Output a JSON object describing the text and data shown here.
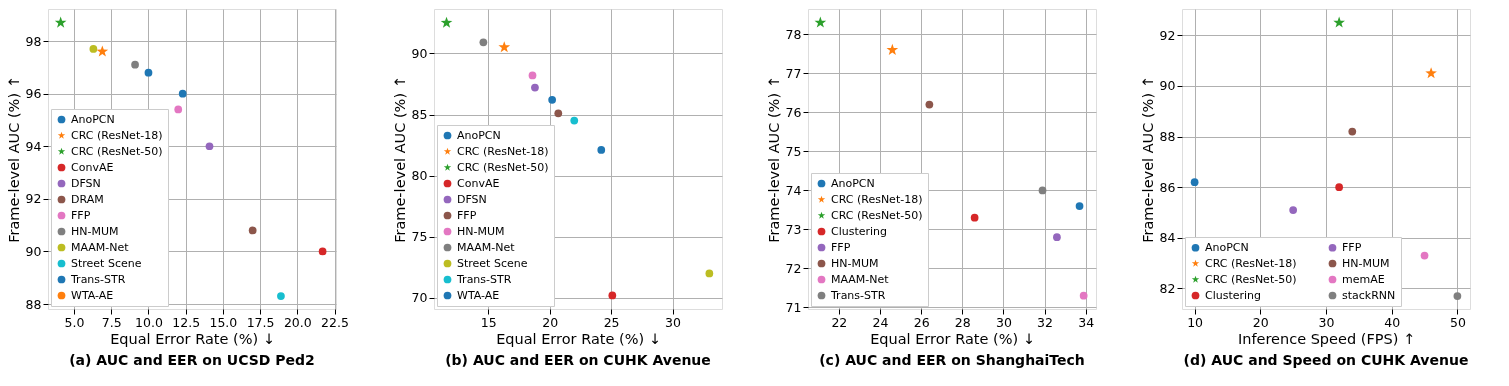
{
  "chart_data": [
    {
      "type": "scatter",
      "title": "(a) AUC and EER on UCSD Ped2",
      "xlabel": "Equal Error Rate (%) ↓",
      "ylabel": "Frame-level AUC (%) ↑",
      "xlim": [
        3.25,
        22.6
      ],
      "ylim": [
        87.81,
        99.22
      ],
      "xticks": [
        {
          "value": 5,
          "label": "5.0"
        },
        7.5,
        {
          "value": 10,
          "label": "10.0"
        },
        12.5,
        {
          "value": 15,
          "label": "15.0"
        },
        17.5,
        {
          "value": 20,
          "label": "20.0"
        },
        22.5
      ],
      "yticks": [
        88,
        90,
        92,
        94,
        96,
        98
      ],
      "grid": true,
      "legend": "bottom left",
      "series": [
        {
          "name": "AnoPCN",
          "color": "#1f77b4",
          "marker": "circle",
          "x": [
            10.0
          ],
          "values": [
            96.8
          ]
        },
        {
          "name": "CRC (ResNet-18)",
          "color": "#ff7f0e",
          "marker": "star",
          "x": [
            6.9
          ],
          "values": [
            97.6
          ]
        },
        {
          "name": "CRC (ResNet-50)",
          "color": "#2ca02c",
          "marker": "star",
          "x": [
            4.1
          ],
          "values": [
            98.7
          ]
        },
        {
          "name": "ConvAE",
          "color": "#d62728",
          "marker": "circle",
          "x": [
            21.7
          ],
          "values": [
            90.0
          ]
        },
        {
          "name": "DFSN",
          "color": "#9467bd",
          "marker": "circle",
          "x": [
            14.1
          ],
          "values": [
            94.0
          ]
        },
        {
          "name": "DRAM",
          "color": "#8c564b",
          "marker": "circle",
          "x": [
            17.0
          ],
          "values": [
            90.8
          ]
        },
        {
          "name": "FFP",
          "color": "#e377c2",
          "marker": "circle",
          "x": [
            12.0
          ],
          "values": [
            95.4
          ]
        },
        {
          "name": "HN-MUM",
          "color": "#7f7f7f",
          "marker": "circle",
          "x": [
            9.1
          ],
          "values": [
            97.1
          ]
        },
        {
          "name": "MAAM-Net",
          "color": "#bcbd22",
          "marker": "circle",
          "x": [
            6.3
          ],
          "values": [
            97.7
          ]
        },
        {
          "name": "Street Scene",
          "color": "#17becf",
          "marker": "circle",
          "x": [
            18.9
          ],
          "values": [
            88.3
          ]
        },
        {
          "name": "Trans-STR",
          "color": "#1f77b4",
          "marker": "circle",
          "x": [
            12.3
          ],
          "values": [
            96.0
          ]
        },
        {
          "name": "WTA-AE",
          "color": "#ff7f0e",
          "marker": "circle",
          "x": [
            null
          ],
          "values": [
            null
          ]
        }
      ]
    },
    {
      "type": "scatter",
      "title": "(b) AUC and EER on CUHK Avenue",
      "xlabel": "Equal Error Rate (%) ↓",
      "ylabel": "Frame-level AUC (%) ↑",
      "xlim": [
        10.58,
        34.03
      ],
      "ylim": [
        69.09,
        93.63
      ],
      "xticks": [
        15,
        20,
        25,
        30
      ],
      "yticks": [
        70,
        75,
        80,
        85,
        90
      ],
      "grid": true,
      "legend": "bottom left",
      "series": [
        {
          "name": "AnoPCN",
          "color": "#1f77b4",
          "marker": "circle",
          "x": [
            20.2
          ],
          "values": [
            86.2
          ]
        },
        {
          "name": "CRC (ResNet-18)",
          "color": "#ff7f0e",
          "marker": "star",
          "x": [
            16.3
          ],
          "values": [
            90.5
          ]
        },
        {
          "name": "CRC (ResNet-50)",
          "color": "#2ca02c",
          "marker": "star",
          "x": [
            11.6
          ],
          "values": [
            92.5
          ]
        },
        {
          "name": "ConvAE",
          "color": "#d62728",
          "marker": "circle",
          "x": [
            25.1
          ],
          "values": [
            70.2
          ]
        },
        {
          "name": "DFSN",
          "color": "#9467bd",
          "marker": "circle",
          "x": [
            18.8
          ],
          "values": [
            87.2
          ]
        },
        {
          "name": "FFP",
          "color": "#8c564b",
          "marker": "circle",
          "x": [
            20.7
          ],
          "values": [
            85.1
          ]
        },
        {
          "name": "HN-MUM",
          "color": "#e377c2",
          "marker": "circle",
          "x": [
            18.6
          ],
          "values": [
            88.2
          ]
        },
        {
          "name": "MAAM-Net",
          "color": "#7f7f7f",
          "marker": "circle",
          "x": [
            14.6
          ],
          "values": [
            90.9
          ]
        },
        {
          "name": "Street Scene",
          "color": "#bcbd22",
          "marker": "circle",
          "x": [
            33.0
          ],
          "values": [
            72.0
          ]
        },
        {
          "name": "Trans-STR",
          "color": "#17becf",
          "marker": "circle",
          "x": [
            22.0
          ],
          "values": [
            84.5
          ]
        },
        {
          "name": "WTA-AE",
          "color": "#1f77b4",
          "marker": "circle",
          "x": [
            24.2
          ],
          "values": [
            82.1
          ]
        }
      ]
    },
    {
      "type": "scatter",
      "title": "(c) AUC and EER on ShanghaiTech",
      "xlabel": "Equal Error Rate (%) ↓",
      "ylabel": "Frame-level AUC (%) ↑",
      "xlim": [
        20.5,
        34.5
      ],
      "ylim": [
        70.96,
        78.65
      ],
      "xticks": [
        22,
        24,
        26,
        28,
        30,
        32,
        34
      ],
      "yticks": [
        71,
        72,
        73,
        74,
        75,
        76,
        77,
        78
      ],
      "grid": true,
      "legend": "bottom left",
      "series": [
        {
          "name": "AnoPCN",
          "color": "#1f77b4",
          "marker": "circle",
          "x": [
            33.7
          ],
          "values": [
            73.6
          ]
        },
        {
          "name": "CRC (ResNet-18)",
          "color": "#ff7f0e",
          "marker": "star",
          "x": [
            24.6
          ],
          "values": [
            77.6
          ]
        },
        {
          "name": "CRC (ResNet-50)",
          "color": "#2ca02c",
          "marker": "star",
          "x": [
            21.1
          ],
          "values": [
            78.3
          ]
        },
        {
          "name": "Clustering",
          "color": "#d62728",
          "marker": "circle",
          "x": [
            28.6
          ],
          "values": [
            73.3
          ]
        },
        {
          "name": "FFP",
          "color": "#9467bd",
          "marker": "circle",
          "x": [
            32.6
          ],
          "values": [
            72.8
          ]
        },
        {
          "name": "HN-MUM",
          "color": "#8c564b",
          "marker": "circle",
          "x": [
            26.4
          ],
          "values": [
            76.2
          ]
        },
        {
          "name": "MAAM-Net",
          "color": "#e377c2",
          "marker": "circle",
          "x": [
            33.9
          ],
          "values": [
            71.3
          ]
        },
        {
          "name": "Trans-STR",
          "color": "#7f7f7f",
          "marker": "circle",
          "x": [
            31.9
          ],
          "values": [
            74.0
          ]
        }
      ]
    },
    {
      "type": "scatter",
      "title": "(d) AUC and Speed on CUHK Avenue",
      "xlabel": "Inference Speed (FPS) ↑",
      "ylabel": "Frame-level AUC (%) ↑",
      "xlim": [
        8.08,
        51.92
      ],
      "ylim": [
        81.19,
        93.04
      ],
      "xticks": [
        10,
        20,
        30,
        40,
        50
      ],
      "yticks": [
        82,
        84,
        86,
        88,
        90,
        92
      ],
      "grid": true,
      "legend": "bottom",
      "series": [
        {
          "name": "AnoPCN",
          "color": "#1f77b4",
          "marker": "circle",
          "x": [
            10
          ],
          "values": [
            86.2
          ]
        },
        {
          "name": "CRC (ResNet-18)",
          "color": "#ff7f0e",
          "marker": "star",
          "x": [
            46
          ],
          "values": [
            90.5
          ]
        },
        {
          "name": "CRC (ResNet-50)",
          "color": "#2ca02c",
          "marker": "star",
          "x": [
            32
          ],
          "values": [
            92.5
          ]
        },
        {
          "name": "Clustering",
          "color": "#d62728",
          "marker": "circle",
          "x": [
            32
          ],
          "values": [
            86.0
          ]
        },
        {
          "name": "FFP",
          "color": "#9467bd",
          "marker": "circle",
          "x": [
            25
          ],
          "values": [
            85.1
          ]
        },
        {
          "name": "HN-MUM",
          "color": "#8c564b",
          "marker": "circle",
          "x": [
            34
          ],
          "values": [
            88.2
          ]
        },
        {
          "name": "memAE",
          "color": "#e377c2",
          "marker": "circle",
          "x": [
            45
          ],
          "values": [
            83.3
          ]
        },
        {
          "name": "stackRNN",
          "color": "#7f7f7f",
          "marker": "circle",
          "x": [
            50
          ],
          "values": [
            81.7
          ]
        }
      ]
    }
  ]
}
